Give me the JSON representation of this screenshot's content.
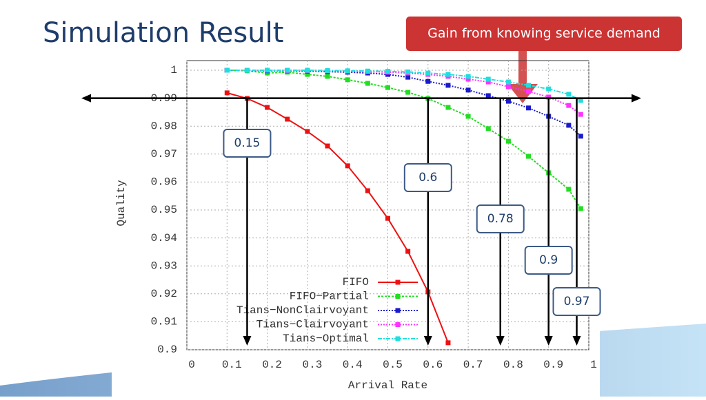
{
  "slide": {
    "title": "Simulation Result",
    "callout": "Gain from knowing service demand"
  },
  "chart_data": {
    "type": "line",
    "x": [
      0.1,
      0.15,
      0.2,
      0.25,
      0.3,
      0.35,
      0.4,
      0.45,
      0.5,
      0.55,
      0.6,
      0.65,
      0.7,
      0.75,
      0.8,
      0.85,
      0.9,
      0.95,
      0.98
    ],
    "series": [
      {
        "name": "FIFO",
        "color": "#ee1111",
        "dash": "none",
        "values": [
          0.9919,
          0.9899,
          0.9867,
          0.9825,
          0.9781,
          0.9729,
          0.9658,
          0.9569,
          0.947,
          0.9352,
          0.9207,
          0.9025,
          null,
          null,
          null,
          null,
          null,
          null,
          null
        ]
      },
      {
        "name": "FIFO−Partial",
        "color": "#22dd22",
        "dash": "3 2",
        "values": [
          1.0,
          0.9998,
          0.999,
          0.9993,
          0.9985,
          0.9978,
          0.9966,
          0.9953,
          0.9938,
          0.9921,
          0.9899,
          0.9867,
          0.9835,
          0.9791,
          0.9746,
          0.9692,
          0.9633,
          0.9574,
          0.9505
        ]
      },
      {
        "name": "Tians−NonClairvoyant",
        "color": "#1a1acc",
        "dash": "2 2",
        "values": [
          1.0,
          1.0,
          0.9998,
          0.9998,
          0.9997,
          0.9995,
          0.9993,
          0.999,
          0.9985,
          0.9975,
          0.996,
          0.9946,
          0.9929,
          0.9909,
          0.9889,
          0.9865,
          0.9835,
          0.9803,
          0.9764
        ]
      },
      {
        "name": "Tians−Clairvoyant",
        "color": "#ff33ff",
        "dash": "2 2",
        "values": [
          1.0,
          1.0,
          1.0,
          0.9999,
          0.9999,
          0.9998,
          0.9997,
          0.9995,
          0.9993,
          0.999,
          0.9985,
          0.9978,
          0.9968,
          0.9958,
          0.9941,
          0.9924,
          0.9904,
          0.9874,
          0.9842
        ]
      },
      {
        "name": "Tians−Optimal",
        "color": "#22dddd",
        "dash": "6 2 2 2",
        "values": [
          1.0,
          1.0,
          1.0,
          1.0,
          1.0,
          0.9999,
          0.9998,
          0.9997,
          0.9996,
          0.9994,
          0.999,
          0.9985,
          0.9978,
          0.9968,
          0.9958,
          0.9946,
          0.9933,
          0.9914,
          0.9892
        ]
      }
    ],
    "xlabel": "Arrival Rate",
    "ylabel": "Quality",
    "xlim": [
      0,
      1
    ],
    "ylim": [
      0.9,
      1
    ],
    "xticks": [
      0,
      0.1,
      0.2,
      0.3,
      0.4,
      0.5,
      0.6,
      0.7,
      0.8,
      0.9,
      1
    ],
    "yticks": [
      0.9,
      0.91,
      0.92,
      0.93,
      0.94,
      0.95,
      0.96,
      0.97,
      0.98,
      0.99,
      1
    ],
    "grid": true,
    "legend": "lower center",
    "threshold_line": 0.99,
    "thresholds": [
      0.15,
      0.6,
      0.78,
      0.9,
      0.97
    ]
  }
}
